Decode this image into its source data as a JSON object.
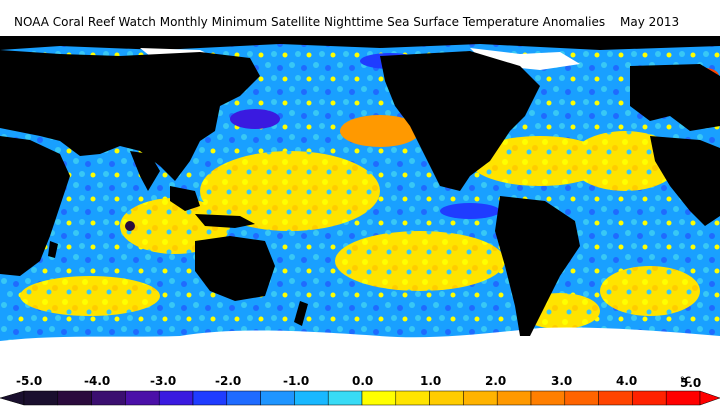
{
  "title": {
    "main": "NOAA Coral Reef Watch Monthly Minimum Satellite Nighttime Sea Surface Temperature Anomalies",
    "date": "May 2013"
  },
  "legend": {
    "ticks": [
      "-5.0",
      "-4.0",
      "-3.0",
      "-2.0",
      "-1.0",
      "0.0",
      "1.0",
      "2.0",
      "3.0",
      "4.0",
      "5.0"
    ],
    "unit": "°C",
    "colors": [
      "#1a0f2e",
      "#2b0a3d",
      "#3b0f70",
      "#4b10a8",
      "#3a1ae0",
      "#1f3cff",
      "#1f6bff",
      "#1f95ff",
      "#19b8ff",
      "#38dbf5",
      "#ffff00",
      "#ffe400",
      "#ffcc00",
      "#ffb300",
      "#ff9900",
      "#ff7f00",
      "#ff6400",
      "#ff4400",
      "#ff2200",
      "#ff0000"
    ]
  },
  "map": {
    "land_color": "#000000",
    "ice_color": "#ffffff",
    "ocean_palette": [
      "#19a0ff",
      "#38c8f5",
      "#ffff00",
      "#1f6bff",
      "#ff9900",
      "#3a1ae0"
    ]
  }
}
